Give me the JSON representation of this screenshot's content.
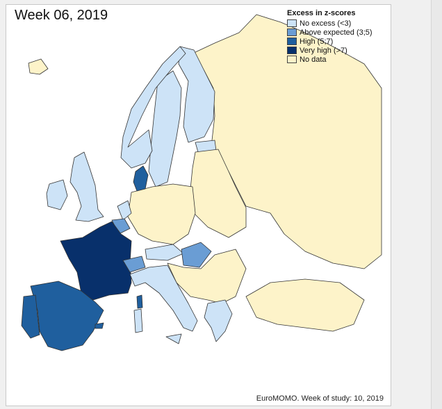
{
  "title": "Week 06, 2019",
  "legend": {
    "title": "Excess in z-scores",
    "items": [
      {
        "label": "No excess (<3)",
        "color": "#cde3f7"
      },
      {
        "label": "Above expected (3;5)",
        "color": "#6a9dd4"
      },
      {
        "label": "High (5;7)",
        "color": "#1f5f9e"
      },
      {
        "label": "Very high (>7)",
        "color": "#08306b"
      },
      {
        "label": "No data",
        "color": "#fdf3c9"
      }
    ]
  },
  "footer": "EuroMOMO. Week of study: 10, 2019",
  "regions": {
    "france": "Very high (>7)",
    "spain": "High (5;7)",
    "portugal": "High (5;7)",
    "denmark": "High (5;7)",
    "corsica": "High (5;7)",
    "belgium": "Above expected (3;5)",
    "switzerland": "Above expected (3;5)",
    "hungary": "Above expected (3;5)",
    "uk": "No excess (<3)",
    "ireland": "No excess (<3)",
    "norway": "No excess (<3)",
    "sweden": "No excess (<3)",
    "finland": "No excess (<3)",
    "netherlands": "No excess (<3)",
    "austria": "No excess (<3)",
    "italy": "No excess (<3)",
    "greece": "No excess (<3)",
    "estonia": "No excess (<3)"
  }
}
